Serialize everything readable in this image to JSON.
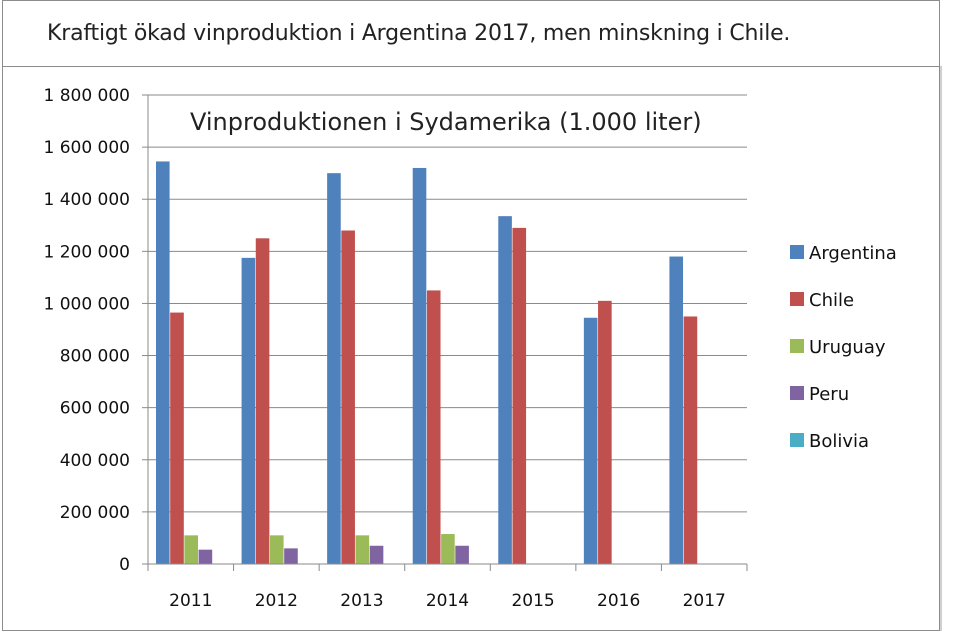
{
  "caption": "Kraftigt ökad vinproduktion i Argentina 2017, men minskning i Chile.",
  "chart_data": {
    "type": "bar",
    "title": "Vinproduktionen i Sydamerika (1.000 liter)",
    "xlabel": "",
    "ylabel": "",
    "categories": [
      "2011",
      "2012",
      "2013",
      "2014",
      "2015",
      "2016",
      "2017"
    ],
    "ylim": [
      0,
      1800000
    ],
    "yticks": [
      0,
      200000,
      400000,
      600000,
      800000,
      1000000,
      1200000,
      1400000,
      1600000,
      1800000
    ],
    "ytick_labels": [
      "0",
      "200 000",
      "400 000",
      "600 000",
      "800 000",
      "1 000 000",
      "1 200 000",
      "1 400 000",
      "1 600 000",
      "1 800 000"
    ],
    "grid": true,
    "legend_position": "right",
    "series": [
      {
        "name": "Argentina",
        "color": "#4f81bd",
        "values": [
          1545000,
          1175000,
          1500000,
          1520000,
          1335000,
          945000,
          1180000
        ]
      },
      {
        "name": "Chile",
        "color": "#c0504d",
        "values": [
          965000,
          1250000,
          1280000,
          1050000,
          1290000,
          1010000,
          950000
        ]
      },
      {
        "name": "Uruguay",
        "color": "#9bbb59",
        "values": [
          110000,
          110000,
          110000,
          115000,
          null,
          null,
          null
        ]
      },
      {
        "name": "Peru",
        "color": "#8064a2",
        "values": [
          55000,
          60000,
          70000,
          70000,
          null,
          null,
          null
        ]
      },
      {
        "name": "Bolivia",
        "color": "#4bacc6",
        "values": [
          null,
          null,
          null,
          null,
          null,
          null,
          null
        ]
      }
    ]
  }
}
